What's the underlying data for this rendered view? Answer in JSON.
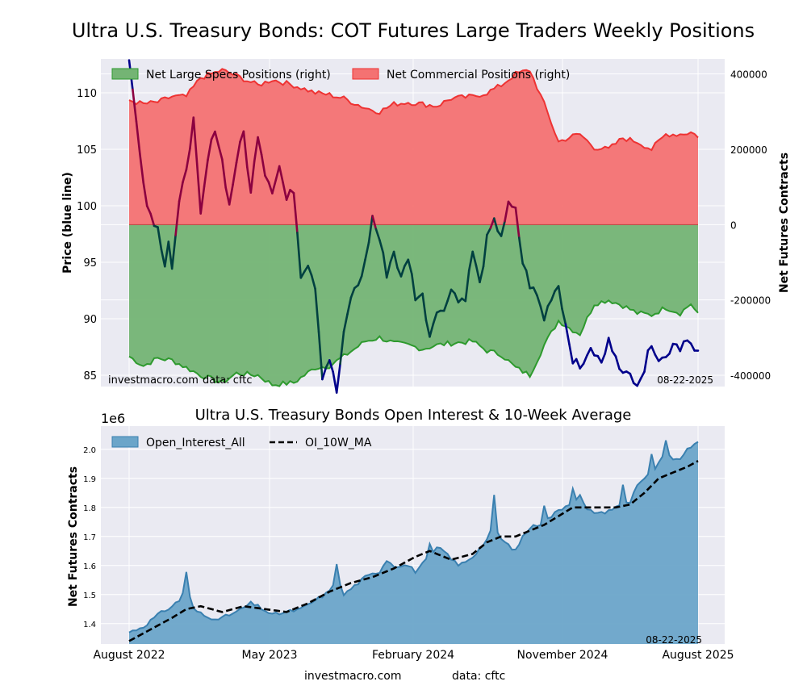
{
  "figure_title": "Ultra U.S. Treasury Bonds: COT Futures Large Traders Weekly Positions",
  "watermark_source": "investmac​ro.com",
  "watermark_data": "data: cftc",
  "date_stamp": "08-22-2025",
  "footer_source": "investmacro.com",
  "footer_data": "data: cftc",
  "top_panel": {
    "y_left_label": "Price (blue line)",
    "y_right_label": "Net Futures Contracts",
    "legend": [
      "Net Large Specs Positions (right)",
      "Net Commercial Positions (right)"
    ]
  },
  "bottom_panel": {
    "title": "Ultra U.S. Treasury Bonds Open Interest & 10-Week Average",
    "y_label": "Net Futures Contracts",
    "offset_text": "1e6",
    "legend": [
      "Open_Interest_All",
      "OI_10W_MA"
    ]
  },
  "colors": {
    "specs_fill": "#74b474",
    "specs_line": "#2e9a2e",
    "comm_fill": "#f47272",
    "comm_line": "#ee3333",
    "price_line": "#00008b",
    "oi_fill": "#6ba5c9",
    "oi_line": "#3a80b0",
    "ma_line": "#000000",
    "panel_bg": "#eaeaf2"
  },
  "chart_data": [
    {
      "type": "area",
      "title": "Ultra U.S. Treasury Bonds: COT Futures Large Traders Weekly Positions",
      "x_axis": {
        "start": "2022-08-05",
        "end": "2025-08-22",
        "weeks": 160,
        "ticks": [
          "August 2022",
          "May 2023",
          "February 2024",
          "November 2024",
          "August 2025"
        ]
      },
      "y_left": {
        "label": "Price (blue line)",
        "range": [
          84,
          113
        ],
        "ticks": [
          85,
          90,
          95,
          100,
          105,
          110
        ]
      },
      "y_right": {
        "label": "Net Futures Contracts",
        "range": [
          -430000,
          440000
        ],
        "ticks": [
          -400000,
          -200000,
          0,
          200000,
          400000
        ]
      },
      "series": [
        {
          "name": "Net Large Specs Positions (right)",
          "anchors": [
            [
              0,
              -350000
            ],
            [
              4,
              -375000
            ],
            [
              8,
              -355000
            ],
            [
              12,
              -360000
            ],
            [
              16,
              -380000
            ],
            [
              20,
              -400000
            ],
            [
              26,
              -420000
            ],
            [
              30,
              -395000
            ],
            [
              36,
              -400000
            ],
            [
              40,
              -425000
            ],
            [
              46,
              -420000
            ],
            [
              52,
              -380000
            ],
            [
              56,
              -375000
            ],
            [
              60,
              -350000
            ],
            [
              66,
              -310000
            ],
            [
              70,
              -300000
            ],
            [
              74,
              -315000
            ],
            [
              78,
              -320000
            ],
            [
              82,
              -330000
            ],
            [
              86,
              -320000
            ],
            [
              90,
              -315000
            ],
            [
              96,
              -310000
            ],
            [
              100,
              -335000
            ],
            [
              104,
              -345000
            ],
            [
              108,
              -380000
            ],
            [
              112,
              -400000
            ],
            [
              116,
              -320000
            ],
            [
              120,
              -255000
            ],
            [
              124,
              -280000
            ],
            [
              126,
              -290000
            ],
            [
              130,
              -210000
            ],
            [
              134,
              -200000
            ],
            [
              138,
              -215000
            ],
            [
              142,
              -235000
            ],
            [
              146,
              -240000
            ],
            [
              150,
              -220000
            ],
            [
              154,
              -235000
            ],
            [
              157,
              -210000
            ],
            [
              159,
              -240000
            ]
          ]
        },
        {
          "name": "Net Commercial Positions (right)",
          "anchors": [
            [
              0,
              330000
            ],
            [
              4,
              320000
            ],
            [
              8,
              325000
            ],
            [
              12,
              340000
            ],
            [
              16,
              340000
            ],
            [
              20,
              390000
            ],
            [
              26,
              410000
            ],
            [
              30,
              395000
            ],
            [
              36,
              370000
            ],
            [
              40,
              385000
            ],
            [
              46,
              370000
            ],
            [
              52,
              350000
            ],
            [
              56,
              345000
            ],
            [
              60,
              335000
            ],
            [
              66,
              310000
            ],
            [
              70,
              300000
            ],
            [
              74,
              320000
            ],
            [
              78,
              325000
            ],
            [
              82,
              320000
            ],
            [
              86,
              315000
            ],
            [
              90,
              335000
            ],
            [
              96,
              340000
            ],
            [
              100,
              350000
            ],
            [
              104,
              370000
            ],
            [
              108,
              400000
            ],
            [
              112,
              410000
            ],
            [
              116,
              320000
            ],
            [
              120,
              220000
            ],
            [
              124,
              235000
            ],
            [
              126,
              240000
            ],
            [
              130,
              205000
            ],
            [
              134,
              200000
            ],
            [
              138,
              230000
            ],
            [
              142,
              220000
            ],
            [
              146,
              200000
            ],
            [
              150,
              240000
            ],
            [
              154,
              240000
            ],
            [
              157,
              245000
            ],
            [
              159,
              235000
            ]
          ]
        },
        {
          "name": "Price (blue line)",
          "anchors": [
            [
              0,
              112.8
            ],
            [
              2,
              107.5
            ],
            [
              5,
              100
            ],
            [
              8,
              98
            ],
            [
              10,
              95
            ],
            [
              11,
              97
            ],
            [
              12,
              94.5
            ],
            [
              14,
              100
            ],
            [
              16,
              103.5
            ],
            [
              18,
              107.5
            ],
            [
              20,
              99
            ],
            [
              22,
              104
            ],
            [
              24,
              107
            ],
            [
              26,
              104
            ],
            [
              28,
              100
            ],
            [
              30,
              104
            ],
            [
              32,
              106.5
            ],
            [
              34,
              101
            ],
            [
              36,
              106.5
            ],
            [
              38,
              103
            ],
            [
              40,
              101.5
            ],
            [
              42,
              103.5
            ],
            [
              44,
              100.5
            ],
            [
              46,
              101.5
            ],
            [
              48,
              94
            ],
            [
              50,
              95
            ],
            [
              52,
              93
            ],
            [
              54,
              85
            ],
            [
              56,
              86.5
            ],
            [
              58,
              83.5
            ],
            [
              60,
              88.5
            ],
            [
              62,
              92
            ],
            [
              64,
              93
            ],
            [
              66,
              95
            ],
            [
              68,
              99
            ],
            [
              70,
              97
            ],
            [
              72,
              94
            ],
            [
              74,
              96
            ],
            [
              76,
              93.5
            ],
            [
              78,
              95.5
            ],
            [
              80,
              92
            ],
            [
              82,
              92
            ],
            [
              84,
              88.5
            ],
            [
              86,
              91
            ],
            [
              88,
              90.5
            ],
            [
              90,
              93
            ],
            [
              92,
              91.5
            ],
            [
              94,
              92
            ],
            [
              96,
              96
            ],
            [
              98,
              93
            ],
            [
              100,
              97
            ],
            [
              102,
              98.5
            ],
            [
              104,
              97.5
            ],
            [
              106,
              100
            ],
            [
              108,
              99.5
            ],
            [
              110,
              95
            ],
            [
              112,
              93
            ],
            [
              114,
              92
            ],
            [
              116,
              90
            ],
            [
              118,
              92
            ],
            [
              120,
              93
            ],
            [
              122,
              89.5
            ],
            [
              124,
              86.5
            ],
            [
              126,
              85.5
            ],
            [
              128,
              87
            ],
            [
              130,
              87
            ],
            [
              132,
              86
            ],
            [
              134,
              88
            ],
            [
              136,
              87
            ],
            [
              138,
              85
            ],
            [
              140,
              85
            ],
            [
              142,
              84.5
            ],
            [
              144,
              85.5
            ],
            [
              146,
              88
            ],
            [
              148,
              86.5
            ],
            [
              150,
              86.5
            ],
            [
              152,
              88
            ],
            [
              154,
              87.5
            ],
            [
              156,
              88.5
            ],
            [
              158,
              87
            ],
            [
              159,
              87
            ]
          ]
        }
      ],
      "annotations": [
        "investmacro.com",
        "data: cftc",
        "08-22-2025"
      ]
    },
    {
      "type": "area",
      "title": "Ultra U.S. Treasury Bonds Open Interest & 10-Week Average",
      "x_axis": {
        "start": "2022-08-05",
        "end": "2025-08-22",
        "weeks": 160,
        "ticks": [
          "August 2022",
          "May 2023",
          "February 2024",
          "November 2024",
          "August 2025"
        ]
      },
      "y_axis": {
        "label": "Net Futures Contracts",
        "offset_text": "1e6",
        "range": [
          1.33,
          2.08
        ],
        "ticks": [
          1.4,
          1.5,
          1.6,
          1.7,
          1.8,
          1.9,
          2.0
        ]
      },
      "series": [
        {
          "name": "Open_Interest_All",
          "anchors": [
            [
              0,
              1.37
            ],
            [
              4,
              1.39
            ],
            [
              8,
              1.43
            ],
            [
              12,
              1.46
            ],
            [
              14,
              1.48
            ],
            [
              16,
              1.53
            ],
            [
              18,
              1.45
            ],
            [
              22,
              1.42
            ],
            [
              26,
              1.42
            ],
            [
              30,
              1.44
            ],
            [
              34,
              1.47
            ],
            [
              36,
              1.46
            ],
            [
              40,
              1.43
            ],
            [
              44,
              1.44
            ],
            [
              48,
              1.45
            ],
            [
              52,
              1.48
            ],
            [
              56,
              1.51
            ],
            [
              58,
              1.56
            ],
            [
              60,
              1.5
            ],
            [
              64,
              1.54
            ],
            [
              66,
              1.56
            ],
            [
              70,
              1.58
            ],
            [
              72,
              1.62
            ],
            [
              74,
              1.6
            ],
            [
              78,
              1.6
            ],
            [
              80,
              1.58
            ],
            [
              84,
              1.63
            ],
            [
              86,
              1.66
            ],
            [
              88,
              1.65
            ],
            [
              92,
              1.6
            ],
            [
              96,
              1.63
            ],
            [
              98,
              1.66
            ],
            [
              100,
              1.69
            ],
            [
              102,
              1.74
            ],
            [
              104,
              1.69
            ],
            [
              106,
              1.67
            ],
            [
              108,
              1.65
            ],
            [
              110,
              1.7
            ],
            [
              112,
              1.73
            ],
            [
              116,
              1.75
            ],
            [
              120,
              1.79
            ],
            [
              124,
              1.82
            ],
            [
              126,
              1.84
            ],
            [
              128,
              1.79
            ],
            [
              132,
              1.78
            ],
            [
              136,
              1.8
            ],
            [
              140,
              1.82
            ],
            [
              142,
              1.88
            ],
            [
              144,
              1.9
            ],
            [
              146,
              1.92
            ],
            [
              148,
              1.95
            ],
            [
              150,
              1.99
            ],
            [
              152,
              1.96
            ],
            [
              154,
              1.97
            ],
            [
              157,
              2.01
            ],
            [
              159,
              2.02
            ]
          ]
        },
        {
          "name": "OI_10W_MA",
          "anchors": [
            [
              0,
              1.34
            ],
            [
              6,
              1.38
            ],
            [
              12,
              1.42
            ],
            [
              16,
              1.45
            ],
            [
              20,
              1.46
            ],
            [
              26,
              1.44
            ],
            [
              32,
              1.46
            ],
            [
              38,
              1.45
            ],
            [
              44,
              1.44
            ],
            [
              50,
              1.47
            ],
            [
              56,
              1.51
            ],
            [
              62,
              1.54
            ],
            [
              68,
              1.56
            ],
            [
              74,
              1.59
            ],
            [
              80,
              1.63
            ],
            [
              84,
              1.65
            ],
            [
              90,
              1.62
            ],
            [
              96,
              1.64
            ],
            [
              100,
              1.68
            ],
            [
              104,
              1.7
            ],
            [
              108,
              1.7
            ],
            [
              112,
              1.72
            ],
            [
              116,
              1.74
            ],
            [
              120,
              1.77
            ],
            [
              124,
              1.8
            ],
            [
              128,
              1.8
            ],
            [
              132,
              1.8
            ],
            [
              136,
              1.8
            ],
            [
              140,
              1.81
            ],
            [
              144,
              1.85
            ],
            [
              148,
              1.9
            ],
            [
              152,
              1.92
            ],
            [
              156,
              1.94
            ],
            [
              159,
              1.96
            ]
          ]
        }
      ],
      "annotations": [
        "08-22-2025"
      ]
    }
  ]
}
